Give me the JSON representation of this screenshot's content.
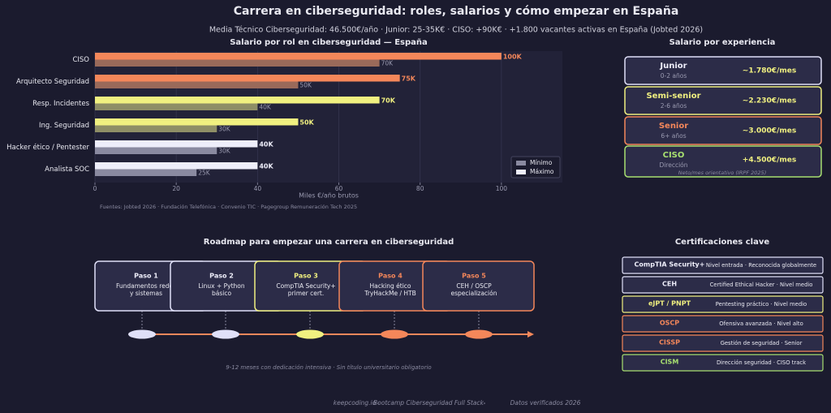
{
  "title": "Carrera en ciberseguridad: roles, salarios y cómo empezar en España",
  "subtitle": "Media Técnico Ciberseguridad: 46.500€/año · Junior: 25-35K€ · CISO: +90K€ · +1.800 vacantes activas en España (Jobted 2026)",
  "chart_data": {
    "type": "hbar",
    "title": "Salario por rol en ciberseguridad — España",
    "x_label": "Miles €/año brutos",
    "source": "Fuentes: Jobted 2026 · Fundación Telefónica · Convenio TIC · Pagegroup Remuneración Tech 2025",
    "categories": [
      "CISO",
      "Arquitecto Seguridad",
      "Resp. Incidentes",
      "Ing. Seguridad",
      "Hacker ético / Pentester",
      "Analista SOC"
    ],
    "series": [
      {
        "name": "Mínimo",
        "color": "#8a8aa0",
        "colors": [
          "#9a6a5a",
          "#9a6a5a",
          "#8e8e66",
          "#8e8e66",
          "#8a8aa0",
          "#8a8aa0"
        ],
        "values": [
          70,
          50,
          40,
          30,
          30,
          25
        ],
        "value_labels": [
          "70K",
          "50K",
          "40K",
          "30K",
          "30K",
          "25K"
        ]
      },
      {
        "name": "Máximo",
        "color": "#eeeefa",
        "colors": [
          "#f4875a",
          "#f4875a",
          "#f0f080",
          "#f0f080",
          "#eeeefa",
          "#eeeefa"
        ],
        "values": [
          100,
          75,
          70,
          50,
          40,
          40
        ],
        "value_labels": [
          "100K",
          "75K",
          "70K",
          "50K",
          "40K",
          "40K"
        ]
      }
    ],
    "xlim": [
      0,
      115
    ],
    "xticks": [
      0,
      20,
      40,
      60,
      80,
      100
    ],
    "grid": true,
    "legend": "lower right"
  },
  "experience": {
    "title": "Salario por experiencia",
    "note": "Neto/mes orientativo (IRPF 2025)",
    "levels": [
      {
        "level": "Junior",
        "years": "0-2 años",
        "salary": "~1.780€/mes"
      },
      {
        "level": "Semi-senior",
        "years": "2-6 años",
        "salary": "~2.230€/mes"
      },
      {
        "level": "Senior",
        "years": "6+ años",
        "salary": "~3.000€/mes"
      },
      {
        "level": "CISO",
        "years": "Dirección",
        "salary": "+4.500€/mes"
      }
    ]
  },
  "roadmap": {
    "title": "Roadmap para empezar una carrera en ciberseguridad",
    "note": "9-12 meses con dedicación intensiva · Sin título universitario obligatorio",
    "steps": [
      {
        "label": "Paso 1",
        "lines": [
          "Fundamentos redes",
          "y sistemas"
        ]
      },
      {
        "label": "Paso 2",
        "lines": [
          "Linux + Python",
          "básico"
        ]
      },
      {
        "label": "Paso 3",
        "lines": [
          "CompTIA Security+",
          "primer cert."
        ]
      },
      {
        "label": "Paso 4",
        "lines": [
          "Hacking ético",
          "TryHackMe / HTB"
        ]
      },
      {
        "label": "Paso 5",
        "lines": [
          "CEH / OSCP",
          "especialización"
        ]
      }
    ]
  },
  "certifications": {
    "title": "Certificaciones clave",
    "items": [
      {
        "name": "CompTIA Security+",
        "desc": "Nivel entrada · Reconocida globalmente"
      },
      {
        "name": "CEH",
        "desc": "Certified Ethical Hacker · Nivel medio"
      },
      {
        "name": "eJPT / PNPT",
        "desc": "Pentesting práctico · Nivel medio"
      },
      {
        "name": "OSCP",
        "desc": "Ofensiva avanzada · Nivel alto"
      },
      {
        "name": "CISSP",
        "desc": "Gestión de seguridad · Senior"
      },
      {
        "name": "CISM",
        "desc": "Dirección seguridad · CISO track"
      }
    ]
  },
  "footer": [
    "keepcoding.io",
    "Bootcamp Ciberseguridad Full Stack",
    "Datos verificados 2026"
  ]
}
